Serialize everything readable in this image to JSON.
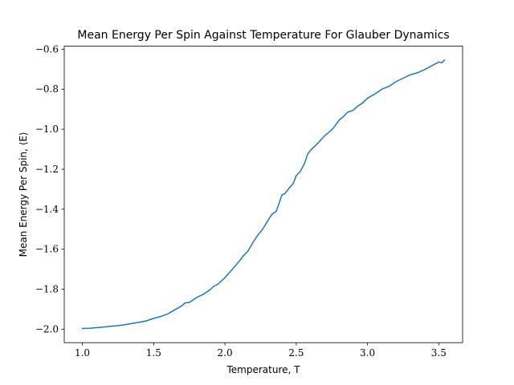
{
  "chart_data": {
    "type": "line",
    "title": "Mean Energy Per Spin Against Temperature For Glauber Dynamics",
    "xlabel": "Temperature, T",
    "ylabel": "Mean Energy Per Spin, ⟨E⟩",
    "xlim": [
      0.873,
      3.667
    ],
    "ylim": [
      -2.067,
      -0.585
    ],
    "xticks": [
      1.0,
      1.5,
      2.0,
      2.5,
      3.0,
      3.5
    ],
    "xtick_labels": [
      "1.0",
      "1.5",
      "2.0",
      "2.5",
      "3.0",
      "3.5"
    ],
    "yticks": [
      -2.0,
      -1.8,
      -1.6,
      -1.4,
      -1.2,
      -1.0,
      -0.8,
      -0.6
    ],
    "ytick_labels": [
      "−2.0",
      "−1.8",
      "−1.6",
      "−1.4",
      "−1.2",
      "−1.0",
      "−0.8",
      "−0.6"
    ],
    "grid": false,
    "series": [
      {
        "color": "#1f77b4",
        "x": [
          1.0,
          1.05,
          1.1,
          1.15,
          1.2,
          1.25,
          1.3,
          1.35,
          1.4,
          1.45,
          1.5,
          1.55,
          1.6,
          1.65,
          1.7,
          1.72,
          1.75,
          1.8,
          1.85,
          1.9,
          1.92,
          1.95,
          2.0,
          2.03,
          2.06,
          2.1,
          2.13,
          2.16,
          2.2,
          2.23,
          2.26,
          2.3,
          2.33,
          2.36,
          2.38,
          2.4,
          2.42,
          2.45,
          2.48,
          2.5,
          2.53,
          2.56,
          2.58,
          2.6,
          2.63,
          2.66,
          2.7,
          2.73,
          2.76,
          2.8,
          2.83,
          2.86,
          2.9,
          2.93,
          2.96,
          3.0,
          3.05,
          3.1,
          3.15,
          3.2,
          3.25,
          3.3,
          3.35,
          3.4,
          3.45,
          3.5,
          3.52,
          3.54
        ],
        "y": [
          -1.996,
          -1.995,
          -1.992,
          -1.989,
          -1.985,
          -1.982,
          -1.977,
          -1.971,
          -1.965,
          -1.958,
          -1.946,
          -1.936,
          -1.923,
          -1.902,
          -1.882,
          -1.868,
          -1.866,
          -1.842,
          -1.825,
          -1.8,
          -1.786,
          -1.775,
          -1.742,
          -1.718,
          -1.694,
          -1.66,
          -1.632,
          -1.611,
          -1.562,
          -1.53,
          -1.505,
          -1.458,
          -1.425,
          -1.41,
          -1.37,
          -1.328,
          -1.322,
          -1.295,
          -1.27,
          -1.232,
          -1.21,
          -1.168,
          -1.125,
          -1.105,
          -1.085,
          -1.064,
          -1.032,
          -1.015,
          -0.995,
          -0.955,
          -0.938,
          -0.915,
          -0.905,
          -0.885,
          -0.872,
          -0.845,
          -0.825,
          -0.8,
          -0.786,
          -0.762,
          -0.745,
          -0.728,
          -0.718,
          -0.702,
          -0.683,
          -0.664,
          -0.668,
          -0.655
        ]
      }
    ]
  }
}
